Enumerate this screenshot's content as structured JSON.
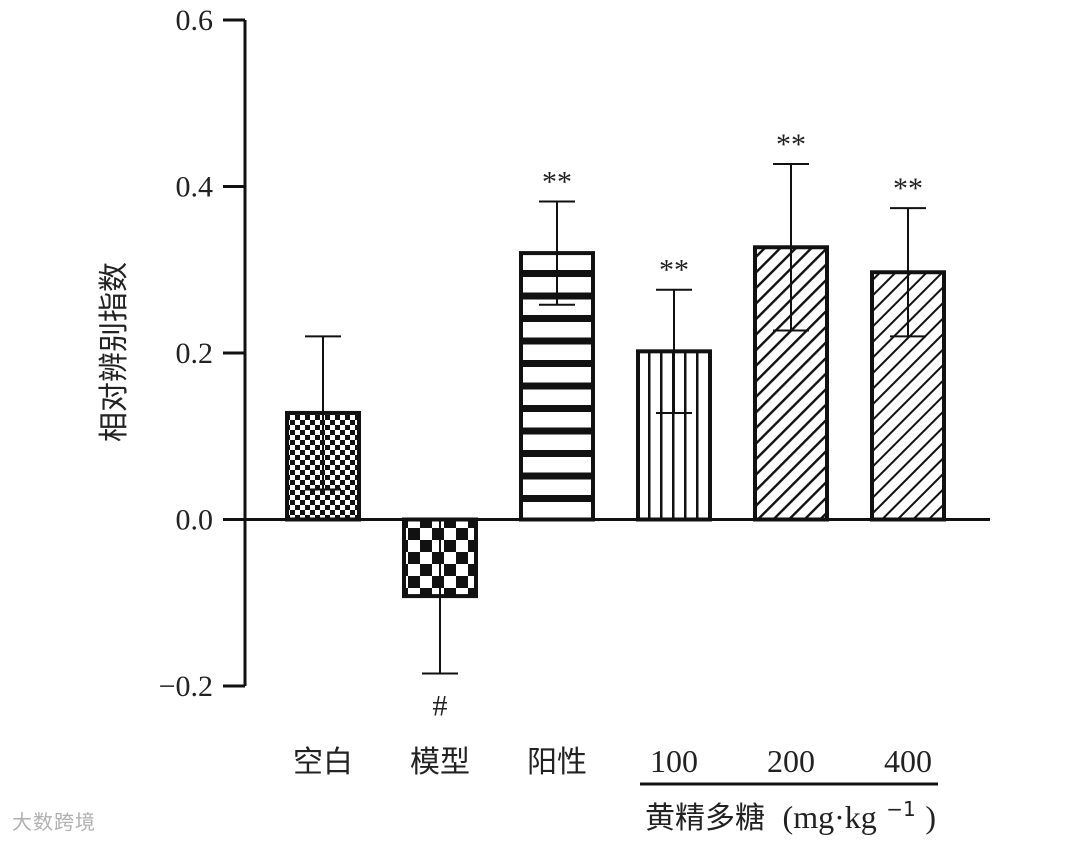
{
  "chart_data": {
    "type": "bar",
    "title": "",
    "ylabel": "相对辨别指数",
    "xgroup_label": "黄精多糖",
    "xgroup_unit": "(mg·kg",
    "xgroup_unit_sup": "−1",
    "xgroup_unit_close": ")",
    "ylim": [
      -0.2,
      0.6
    ],
    "yticks": [
      -0.2,
      0.0,
      0.2,
      0.4,
      0.6
    ],
    "ytick_labels": [
      "−0.2",
      "0.0",
      "0.2",
      "0.4",
      "0.6"
    ],
    "categories": [
      "空白",
      "模型",
      "阳性",
      "100",
      "200",
      "400"
    ],
    "values": [
      0.128,
      -0.092,
      0.32,
      0.202,
      0.327,
      0.297
    ],
    "errors": [
      0.092,
      0.093,
      0.062,
      0.074,
      0.1,
      0.077
    ],
    "patterns": [
      "fine-checker",
      "coarse-checker",
      "horizontal-stripes",
      "vertical-stripes",
      "diagonal-dense",
      "diagonal"
    ],
    "annotations": [
      "",
      "#",
      "**",
      "**",
      "**",
      "**"
    ]
  },
  "watermark": "大数跨境"
}
